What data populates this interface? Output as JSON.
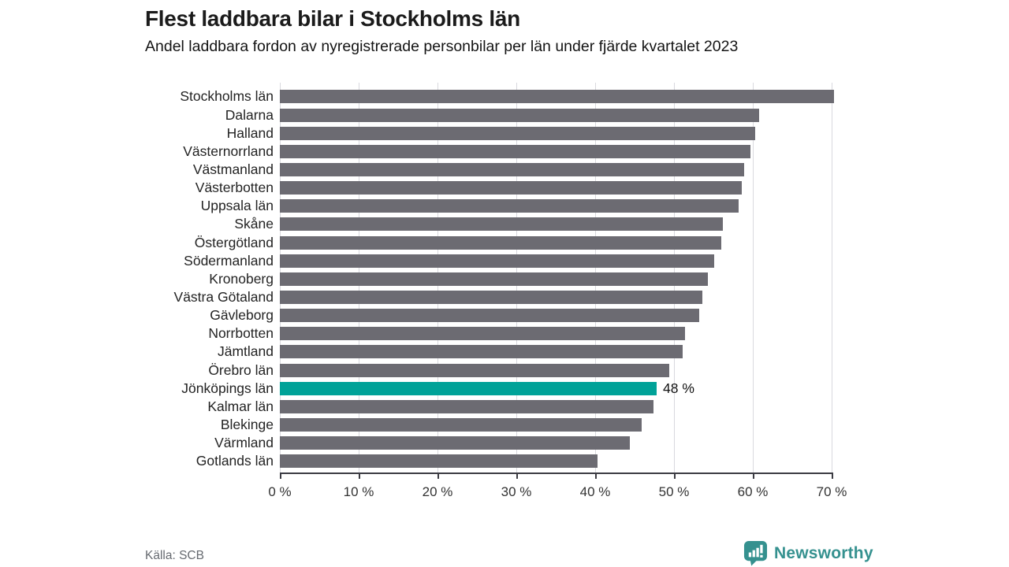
{
  "title": "Flest laddbara bilar i Stockholms län",
  "subtitle": "Andel laddbara fordon av nyregistrerade personbilar per län under fjärde kvartalet 2023",
  "source": "Källa: SCB",
  "logo": {
    "text": "Newsworthy",
    "icon": "newsworthy-bubble-chart-icon"
  },
  "colors": {
    "bar": "#6c6b72",
    "highlight": "#00a298",
    "gridline": "#d9d9de",
    "axis": "#3b3b42",
    "logo_teal": "#35918f"
  },
  "chart_data": {
    "type": "bar",
    "orientation": "horizontal",
    "title": "Flest laddbara bilar i Stockholms län",
    "subtitle": "Andel laddbara fordon av nyregistrerade personbilar per län under fjärde kvartalet 2023",
    "unit": "%",
    "xlim": [
      0,
      70
    ],
    "grid": true,
    "x_ticks": [
      "0 %",
      "10 %",
      "20 %",
      "30 %",
      "40 %",
      "50 %",
      "60 %",
      "70 %"
    ],
    "categories": [
      "Stockholms län",
      "Dalarna",
      "Halland",
      "Västernorrland",
      "Västmanland",
      "Västerbotten",
      "Uppsala län",
      "Skåne",
      "Östergötland",
      "Södermanland",
      "Kronoberg",
      "Västra Götaland",
      "Gävleborg",
      "Norrbotten",
      "Jämtland",
      "Örebro län",
      "Jönköpings län",
      "Kalmar län",
      "Blekinge",
      "Värmland",
      "Gotlands län"
    ],
    "values": [
      70.3,
      60.8,
      60.3,
      59.7,
      58.9,
      58.6,
      58.2,
      56.2,
      56.0,
      55.1,
      54.3,
      53.6,
      53.2,
      51.4,
      51.1,
      49.4,
      47.8,
      47.4,
      45.9,
      44.4,
      40.3
    ],
    "highlight": {
      "category": "Jönköpings län",
      "index": 16,
      "value_label": "48 %"
    }
  }
}
